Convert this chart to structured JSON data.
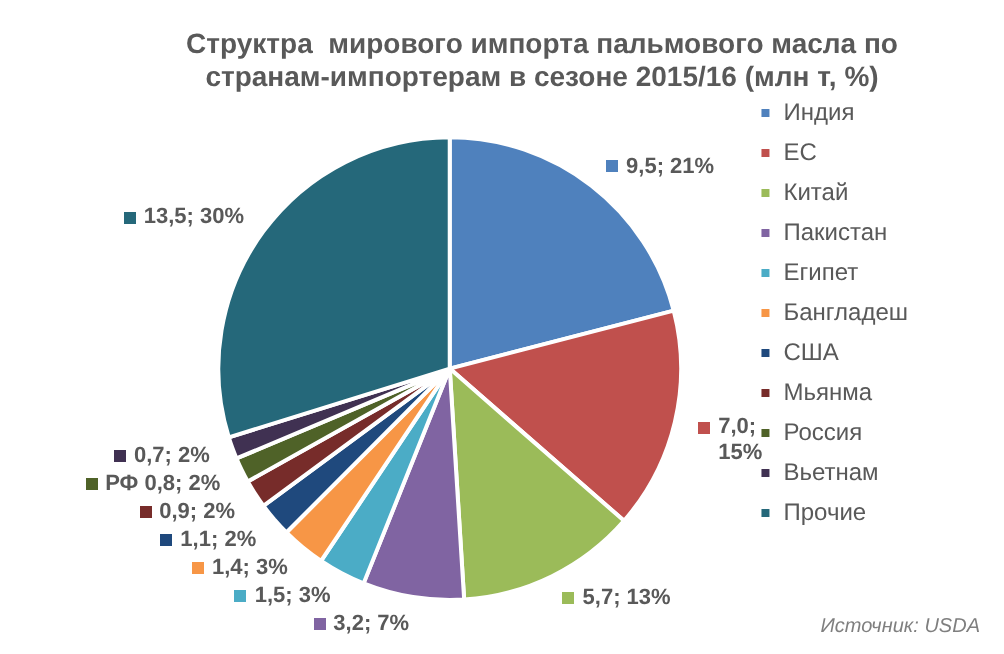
{
  "chart_data": {
    "type": "pie",
    "title": "Структра  мирового импорта пальмового масла по странам-импортерам в сезоне 2015/16 (млн т, %)",
    "categories": [
      "Индия",
      "ЕС",
      "Китай",
      "Пакистан",
      "Египет",
      "Бангладеш",
      "США",
      "Мьянма",
      "Россия",
      "Вьетнам",
      "Прочие"
    ],
    "values": [
      9.5,
      7.0,
      5.7,
      3.2,
      1.5,
      1.4,
      1.1,
      0.9,
      0.8,
      0.7,
      13.5
    ],
    "value_labels": [
      "9,5; 21%",
      "7,0; 15%",
      "5,7; 13%",
      "3,2; 7%",
      "1,5; 3%",
      "1,4; 3%",
      "1,1; 2%",
      "0,9; 2%",
      "РФ 0,8; 2%",
      "0,7; 2%",
      "13,5; 30%"
    ],
    "colors": [
      "#4f81bd",
      "#c0504d",
      "#9bbb59",
      "#8064a2",
      "#4bacc6",
      "#f79646",
      "#1f497d",
      "#772c2a",
      "#4f6228",
      "#403152",
      "#25687a"
    ],
    "legend": "right",
    "annotations": [
      "Источник: USDA"
    ]
  }
}
